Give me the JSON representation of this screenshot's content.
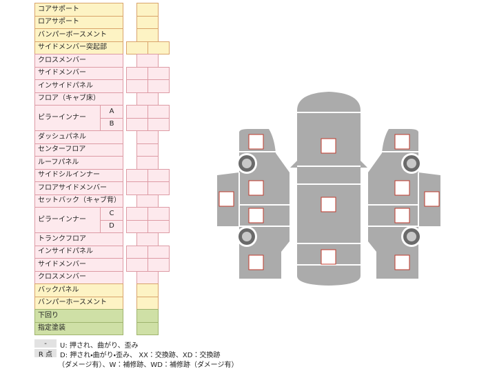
{
  "rows": [
    {
      "label": "コアサポート"
    },
    {
      "label": "ロアサポート"
    },
    {
      "label": "バンパーボースメント"
    },
    {
      "label": "サイドメンバー突起部"
    },
    {
      "label": "クロスメンバー"
    },
    {
      "label": "サイドメンバー"
    },
    {
      "label": "インサイドパネル"
    },
    {
      "label": "フロア（キャブ床）"
    },
    {
      "label": "ピラーインナー",
      "subs": [
        "A",
        "B"
      ]
    },
    {
      "label": "ダッシュパネル"
    },
    {
      "label": "センターフロア"
    },
    {
      "label": "ルーフパネル"
    },
    {
      "label": "サイドシルインナー"
    },
    {
      "label": "フロアサイドメンバー"
    },
    {
      "label": "セットバック（キャブ背）"
    },
    {
      "label": "ピラーインナー",
      "subs": [
        "C",
        "D"
      ]
    },
    {
      "label": "トランクフロア"
    },
    {
      "label": "インサイドパネル"
    },
    {
      "label": "サイドメンバー"
    },
    {
      "label": "クロスメンバー"
    },
    {
      "label": "バックパネル"
    },
    {
      "label": "バンパーホースメント"
    },
    {
      "label": "下回り"
    },
    {
      "label": "指定塗装"
    }
  ],
  "legend": [
    {
      "key": "-",
      "lines": [
        "U: 押され、曲がり、歪み"
      ]
    },
    {
      "key": "R 点",
      "lines": [
        "D: 押され・曲がり・歪み、 XX：交換跡、XD：交換跡",
        "（ダメージ有）、W：補修跡、WD：補修跡（ダメージ有）"
      ]
    }
  ]
}
